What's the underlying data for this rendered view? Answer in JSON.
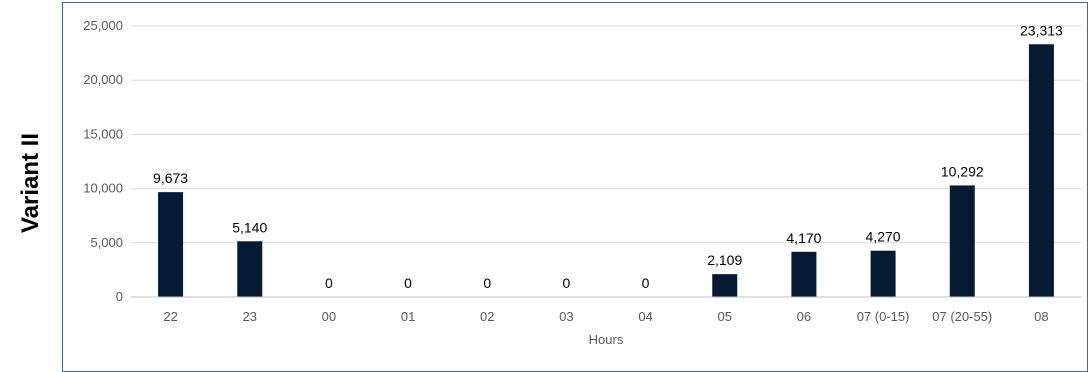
{
  "side_title": "Variant II",
  "chart_data": {
    "type": "bar",
    "xlabel": "Hours",
    "ylabel": "",
    "ylim": [
      0,
      25000
    ],
    "yticks": [
      0,
      5000,
      10000,
      15000,
      20000,
      25000
    ],
    "ytick_labels": [
      "0",
      "5,000",
      "10,000",
      "15,000",
      "20,000",
      "25,000"
    ],
    "grid": true,
    "bar_color": "#061a33",
    "categories": [
      "22",
      "23",
      "00",
      "01",
      "02",
      "03",
      "04",
      "05",
      "06",
      "07 (0-15)",
      "07 (20-55)",
      "08"
    ],
    "values": [
      9673,
      5140,
      0,
      0,
      0,
      0,
      0,
      2109,
      4170,
      4270,
      10292,
      23313
    ],
    "data_labels": [
      "9,673",
      "5,140",
      "0",
      "0",
      "0",
      "0",
      "0",
      "2,109",
      "4,170",
      "4,270",
      "10,292",
      "23,313"
    ]
  }
}
